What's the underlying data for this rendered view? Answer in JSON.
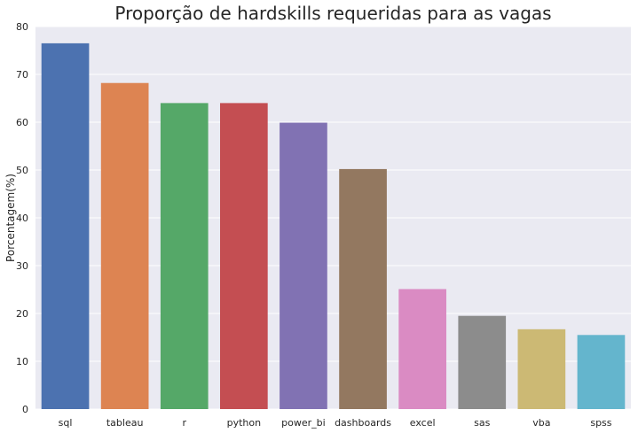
{
  "chart_data": {
    "type": "bar",
    "title": "Proporção de hardskills requeridas para as vagas",
    "xlabel": "",
    "ylabel": "Porcentagem(%)",
    "ylim": [
      0,
      80
    ],
    "yticks": [
      0,
      10,
      20,
      30,
      40,
      50,
      60,
      70,
      80
    ],
    "grid": true,
    "categories": [
      "sql",
      "tableau",
      "r",
      "python",
      "power_bi",
      "dashboards",
      "excel",
      "sas",
      "vba",
      "spss"
    ],
    "values": [
      76.5,
      68.2,
      64.0,
      64.0,
      59.9,
      50.2,
      25.1,
      19.5,
      16.7,
      15.5
    ],
    "colors": [
      "#4c72b0",
      "#dd8452",
      "#55a868",
      "#c44e52",
      "#8172b3",
      "#937860",
      "#da8bc3",
      "#8c8c8c",
      "#ccb974",
      "#64b5cd"
    ],
    "background_color": "#eaeaf2",
    "grid_color": "#ffffff"
  }
}
